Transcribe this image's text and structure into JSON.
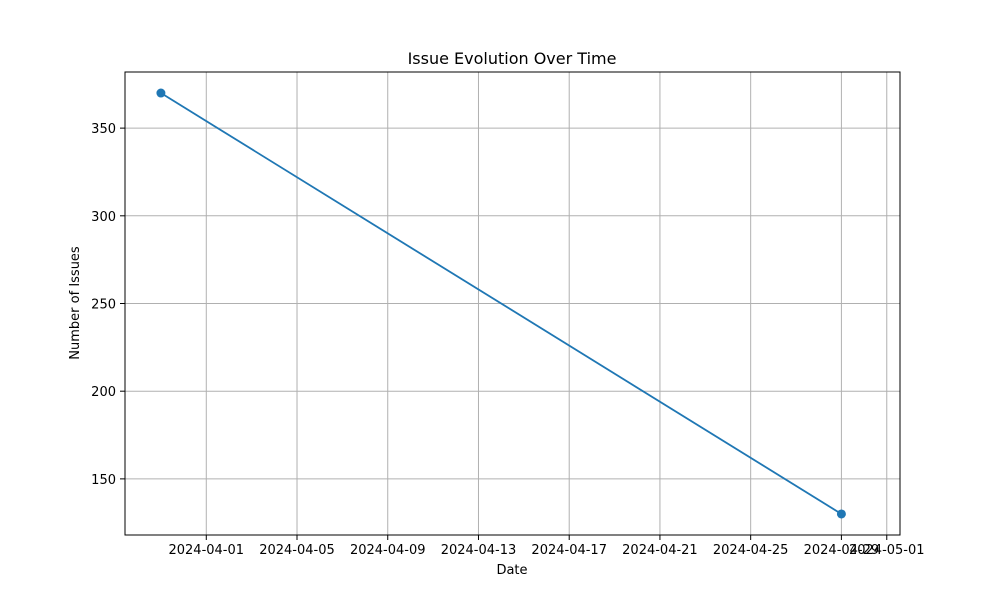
{
  "chart_data": {
    "type": "line",
    "title": "Issue Evolution Over Time",
    "xlabel": "Date",
    "ylabel": "Number of Issues",
    "x_is_date": true,
    "xlim": [
      "2024-03-28T10:00:00",
      "2024-05-01T14:00:00"
    ],
    "ylim": [
      118,
      382
    ],
    "xticks": [
      "2024-04-01",
      "2024-04-05",
      "2024-04-09",
      "2024-04-13",
      "2024-04-17",
      "2024-04-21",
      "2024-04-25",
      "2024-04-29",
      "2024-05-01"
    ],
    "yticks": [
      150,
      200,
      250,
      300,
      350
    ],
    "grid": true,
    "legend": false,
    "series": [
      {
        "x": [
          "2024-03-30",
          "2024-04-29"
        ],
        "y": [
          370,
          130
        ],
        "color": "#1f77b4",
        "marker": "circle"
      }
    ]
  }
}
